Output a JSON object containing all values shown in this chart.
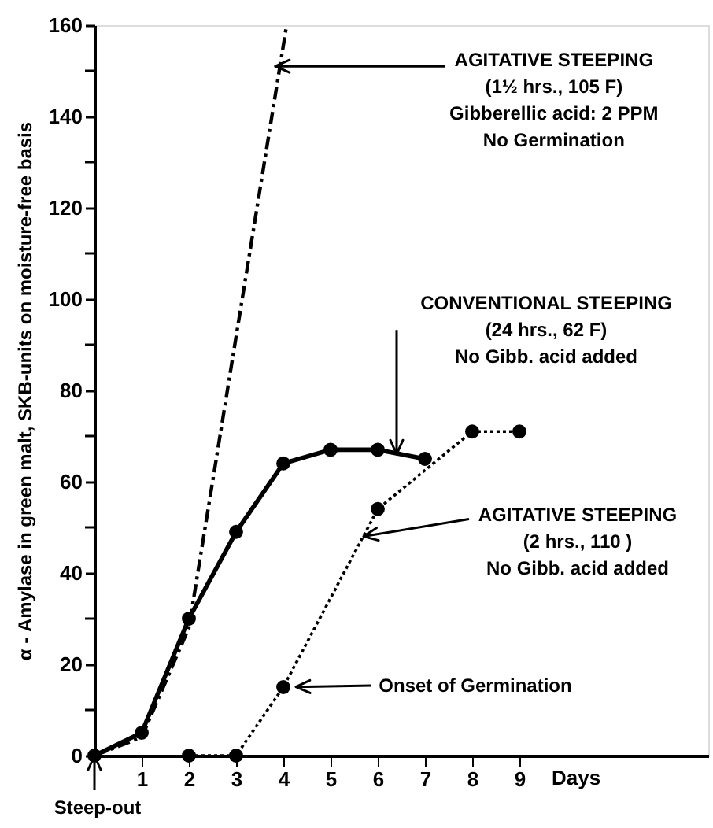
{
  "chart_data": {
    "type": "line",
    "xlabel": "Days",
    "ylabel": "α - Amylase in green malt, SKB-units on moisture-free basis",
    "xlim": [
      0,
      13
    ],
    "xticks": [
      1,
      2,
      3,
      4,
      5,
      6,
      7,
      8,
      9
    ],
    "ylim": [
      0,
      160
    ],
    "yticks": [
      0,
      {
        "value": 10,
        "label": null
      },
      20,
      {
        "value": 30,
        "label": null
      },
      40,
      {
        "value": 50,
        "label": null
      },
      60,
      {
        "value": 70,
        "label": null
      },
      80,
      {
        "value": 90,
        "label": null
      },
      100,
      {
        "value": 110,
        "label": null
      },
      120,
      {
        "value": 130,
        "label": null
      },
      140,
      {
        "value": 150,
        "label": null
      },
      160
    ],
    "grid": false,
    "series": [
      {
        "color": "#000000",
        "line_style": "dashed",
        "marker": "none",
        "x": [
          0,
          1,
          2,
          4.07
        ],
        "values": [
          0,
          4,
          28,
          160
        ]
      },
      {
        "color": "#000000",
        "line_style": "solid",
        "marker": "circle",
        "x": [
          0,
          1,
          2,
          3,
          4,
          5,
          6,
          7
        ],
        "values": [
          0,
          5,
          30,
          49,
          64,
          67,
          67,
          65
        ]
      },
      {
        "color": "#000000",
        "line_style": "dotted",
        "marker": "circle",
        "x": [
          2,
          3,
          4,
          6,
          8,
          9
        ],
        "values": [
          0,
          0,
          15,
          54,
          71,
          71
        ]
      }
    ],
    "annotations": [
      {
        "text": "AGITATIVE STEEPING\n(1½ hrs., 105 F)\nGibberellic acid:   2 PPM\nNo Germination",
        "x": 3.83,
        "y": 151
      },
      {
        "text": "CONVENTIONAL STEEPING\n(24 hrs., 62 F)\nNo Gibb. acid added",
        "x": 6.4,
        "y": 66
      },
      {
        "text": "AGITATIVE STEEPING\n(2 hrs., 110 )\nNo Gibb. acid added",
        "x": 5.7,
        "y": 48
      },
      {
        "text": "Onset  of Germination",
        "x": 4,
        "y": 15
      },
      {
        "text": "Steep-out",
        "x": 0,
        "y": 0
      }
    ]
  }
}
